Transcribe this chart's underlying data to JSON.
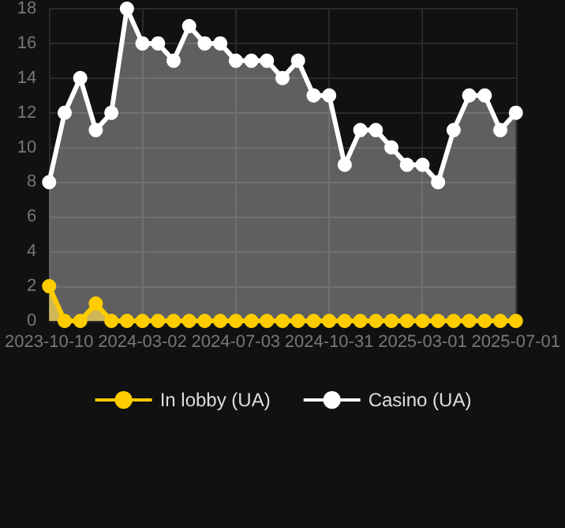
{
  "chart_data": {
    "type": "area",
    "categories": [
      "2023-10-10",
      null,
      null,
      null,
      null,
      null,
      "2024-03-02",
      null,
      null,
      null,
      null,
      null,
      "2024-07-03",
      null,
      null,
      null,
      null,
      null,
      "2024-10-31",
      null,
      null,
      null,
      null,
      null,
      "2025-03-01",
      null,
      null,
      null,
      null,
      null,
      "2025-07-01"
    ],
    "series": [
      {
        "name": "In lobby (UA)",
        "color": "#ffcc00",
        "values": [
          2,
          0,
          0,
          1,
          0,
          0,
          0,
          0,
          0,
          0,
          0,
          0,
          0,
          0,
          0,
          0,
          0,
          0,
          0,
          0,
          0,
          0,
          0,
          0,
          0,
          0,
          0,
          0,
          0,
          0,
          0
        ]
      },
      {
        "name": "Casino (UA)",
        "color": "#ffffff",
        "values": [
          8,
          12,
          14,
          11,
          12,
          18,
          16,
          16,
          15,
          17,
          16,
          16,
          15,
          15,
          15,
          14,
          15,
          13,
          13,
          9,
          11,
          11,
          10,
          9,
          9,
          8,
          11,
          13,
          13,
          11,
          12
        ]
      }
    ],
    "ylim": [
      0,
      18
    ],
    "yticks": [
      0,
      2,
      4,
      6,
      8,
      10,
      12,
      14,
      16,
      18
    ],
    "grid": true,
    "legend": "bottom",
    "marker": "circle",
    "line_style": "solid"
  }
}
